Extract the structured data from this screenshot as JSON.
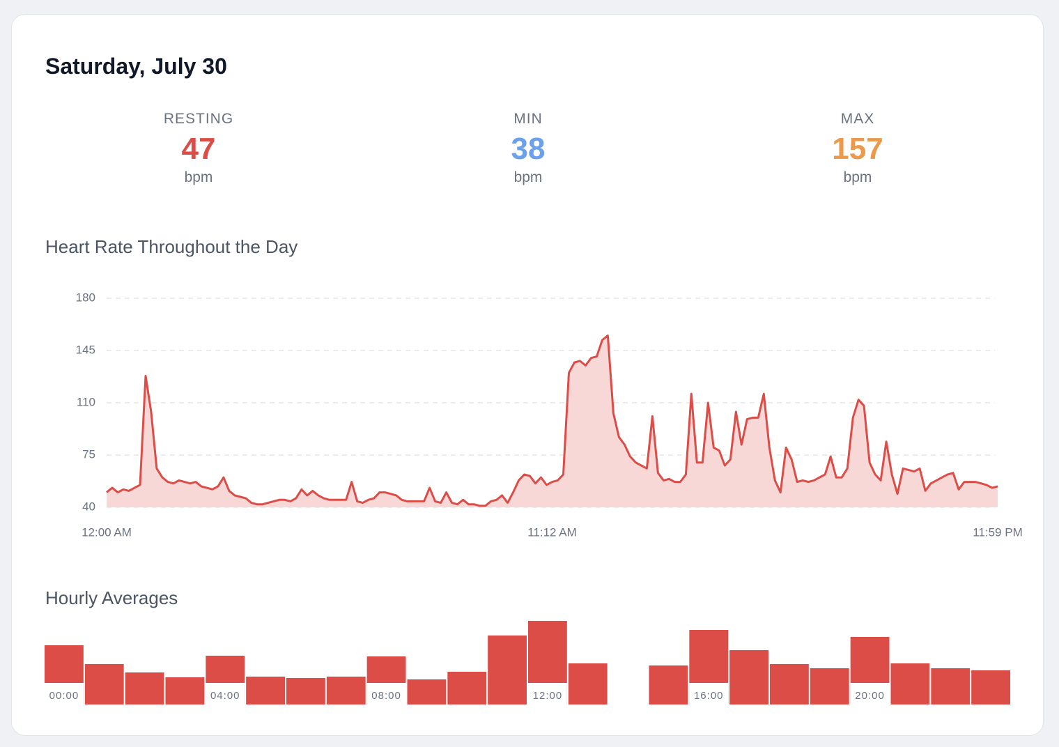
{
  "card_title": "Saturday, July 30",
  "stats": [
    {
      "label": "RESTING",
      "value": 47,
      "unit": "bpm",
      "color": "#dc4d48"
    },
    {
      "label": "MIN",
      "value": 38,
      "unit": "bpm",
      "color": "#6aa0ec"
    },
    {
      "label": "MAX",
      "value": 157,
      "unit": "bpm",
      "color": "#eb9a4b"
    }
  ],
  "chart_data": [
    {
      "type": "line",
      "title": "Heart Rate Throughout the Day",
      "color": "#dc4d48",
      "fill": "#f8d7d7",
      "grid": true,
      "values": [
        50,
        53,
        50,
        52,
        51,
        53,
        55,
        128,
        104,
        66,
        60,
        57,
        56,
        58,
        57,
        56,
        57,
        54,
        53,
        52,
        54,
        60,
        51,
        48,
        47,
        46,
        43,
        42,
        42,
        43,
        44,
        45,
        45,
        44,
        46,
        52,
        48,
        51,
        48,
        46,
        45,
        45,
        45,
        45,
        57,
        44,
        43,
        45,
        46,
        50,
        50,
        49,
        48,
        45,
        44,
        44,
        44,
        44,
        53,
        44,
        43,
        50,
        43,
        42,
        45,
        42,
        42,
        41,
        41,
        44,
        45,
        48,
        43,
        50,
        58,
        62,
        61,
        56,
        60,
        55,
        57,
        58,
        62,
        130,
        137,
        138,
        135,
        140,
        141,
        152,
        155,
        103,
        87,
        82,
        74,
        70,
        68,
        66,
        101,
        63,
        58,
        59,
        57,
        57,
        62,
        116,
        70,
        70,
        110,
        80,
        78,
        68,
        72,
        104,
        82,
        99,
        100,
        100,
        116,
        80,
        58,
        50,
        80,
        72,
        57,
        58,
        57,
        58,
        60,
        62,
        74,
        60,
        60,
        66,
        100,
        112,
        108,
        70,
        62,
        58,
        84,
        62,
        49,
        66,
        65,
        64,
        66,
        51,
        56,
        58,
        60,
        62,
        63,
        52,
        57,
        57,
        57,
        56,
        55,
        53,
        54
      ],
      "ylim": [
        40,
        180
      ],
      "yticks": [
        40,
        75,
        110,
        145,
        180
      ],
      "xlim": [
        0,
        160
      ],
      "xticks": [
        {
          "value": 0,
          "label": "12:00 AM"
        },
        {
          "value": 80,
          "label": "11:12 AM"
        },
        {
          "value": 160,
          "label": "11:59 PM"
        }
      ]
    },
    {
      "type": "bar",
      "title": "Hourly Averages",
      "color": "#dc4d48",
      "categories": [
        "00:00",
        null,
        null,
        null,
        "04:00",
        null,
        null,
        null,
        "08:00",
        null,
        null,
        null,
        "12:00",
        null,
        null,
        null,
        "16:00",
        null,
        null,
        null,
        "20:00",
        null,
        null,
        null
      ],
      "values": [
        85,
        58,
        46,
        39,
        70,
        40,
        38,
        40,
        69,
        36,
        47,
        99,
        120,
        59,
        null,
        56,
        107,
        78,
        58,
        52,
        97,
        59,
        52,
        49
      ]
    }
  ]
}
